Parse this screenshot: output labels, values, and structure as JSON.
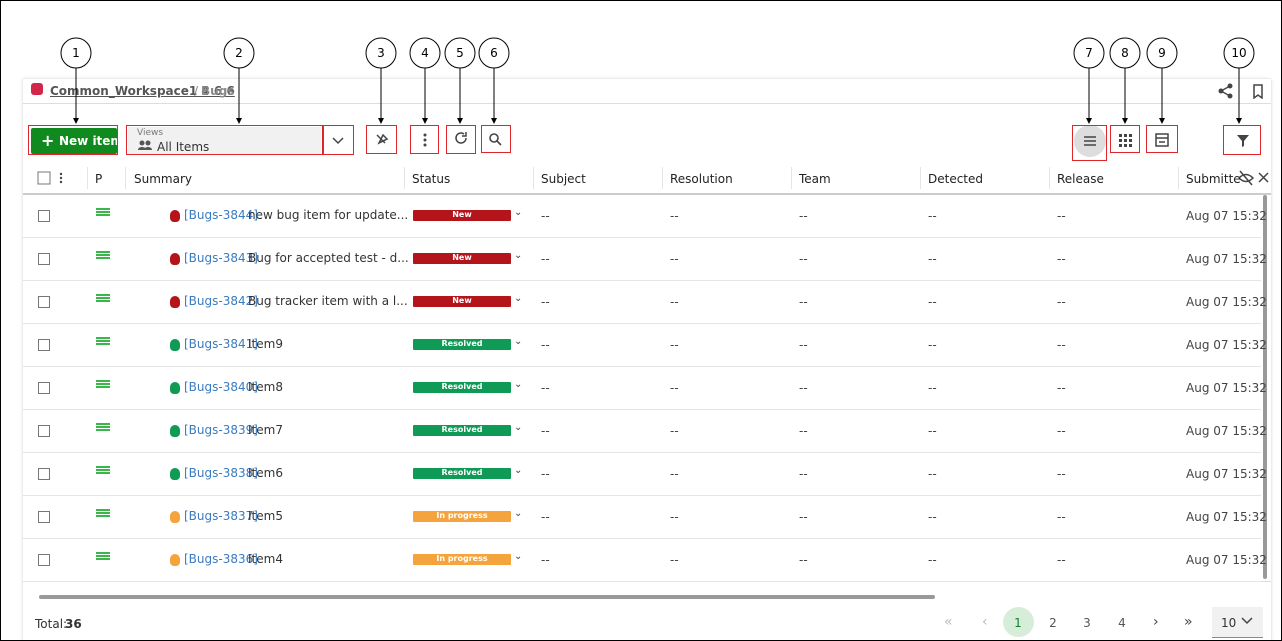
{
  "callouts": [
    "1",
    "2",
    "3",
    "4",
    "5",
    "6",
    "7",
    "8",
    "9",
    "10"
  ],
  "breadcrumb": {
    "workspace": "Common_Workspace1 4 6 6",
    "separator": "/",
    "current": "Bugs"
  },
  "toolbar": {
    "new_item": "New item",
    "views_label": "Views",
    "view_name": "All Items"
  },
  "table": {
    "headers": [
      "P",
      "Summary",
      "Status",
      "Subject",
      "Resolution",
      "Team",
      "Detected",
      "Release",
      "Submitte"
    ],
    "rows": [
      {
        "id": "[Bugs-3844]",
        "summary": "new bug item for update...",
        "status": "New",
        "status_color": "#b3151b",
        "subject": "--",
        "resolution": "--",
        "team": "--",
        "detected": "--",
        "release": "--",
        "submitted": "Aug 07 15:32"
      },
      {
        "id": "[Bugs-3843]",
        "summary": "Bug for accepted test - d...",
        "status": "New",
        "status_color": "#b3151b",
        "subject": "--",
        "resolution": "--",
        "team": "--",
        "detected": "--",
        "release": "--",
        "submitted": "Aug 07 15:32"
      },
      {
        "id": "[Bugs-3842]",
        "summary": "Bug tracker item with a l...",
        "status": "New",
        "status_color": "#b3151b",
        "subject": "--",
        "resolution": "--",
        "team": "--",
        "detected": "--",
        "release": "--",
        "submitted": "Aug 07 15:32"
      },
      {
        "id": "[Bugs-3841]",
        "summary": "Item9",
        "status": "Resolved",
        "status_color": "#0f9a56",
        "subject": "--",
        "resolution": "--",
        "team": "--",
        "detected": "--",
        "release": "--",
        "submitted": "Aug 07 15:32"
      },
      {
        "id": "[Bugs-3840]",
        "summary": "Item8",
        "status": "Resolved",
        "status_color": "#0f9a56",
        "subject": "--",
        "resolution": "--",
        "team": "--",
        "detected": "--",
        "release": "--",
        "submitted": "Aug 07 15:32"
      },
      {
        "id": "[Bugs-3839]",
        "summary": "Item7",
        "status": "Resolved",
        "status_color": "#0f9a56",
        "subject": "--",
        "resolution": "--",
        "team": "--",
        "detected": "--",
        "release": "--",
        "submitted": "Aug 07 15:32"
      },
      {
        "id": "[Bugs-3838]",
        "summary": "Item6",
        "status": "Resolved",
        "status_color": "#0f9a56",
        "subject": "--",
        "resolution": "--",
        "team": "--",
        "detected": "--",
        "release": "--",
        "submitted": "Aug 07 15:32"
      },
      {
        "id": "[Bugs-3837]",
        "summary": "Item5",
        "status": "In progress",
        "status_color": "#f5a33c",
        "subject": "--",
        "resolution": "--",
        "team": "--",
        "detected": "--",
        "release": "--",
        "submitted": "Aug 07 15:32"
      },
      {
        "id": "[Bugs-3836]",
        "summary": "Item4",
        "status": "In progress",
        "status_color": "#f5a33c",
        "subject": "--",
        "resolution": "--",
        "team": "--",
        "detected": "--",
        "release": "--",
        "submitted": "Aug 07 15:32"
      }
    ]
  },
  "footer": {
    "total_label": "Total:",
    "total": "36",
    "pages": [
      "1",
      "2",
      "3",
      "4"
    ],
    "page_size": "10"
  }
}
